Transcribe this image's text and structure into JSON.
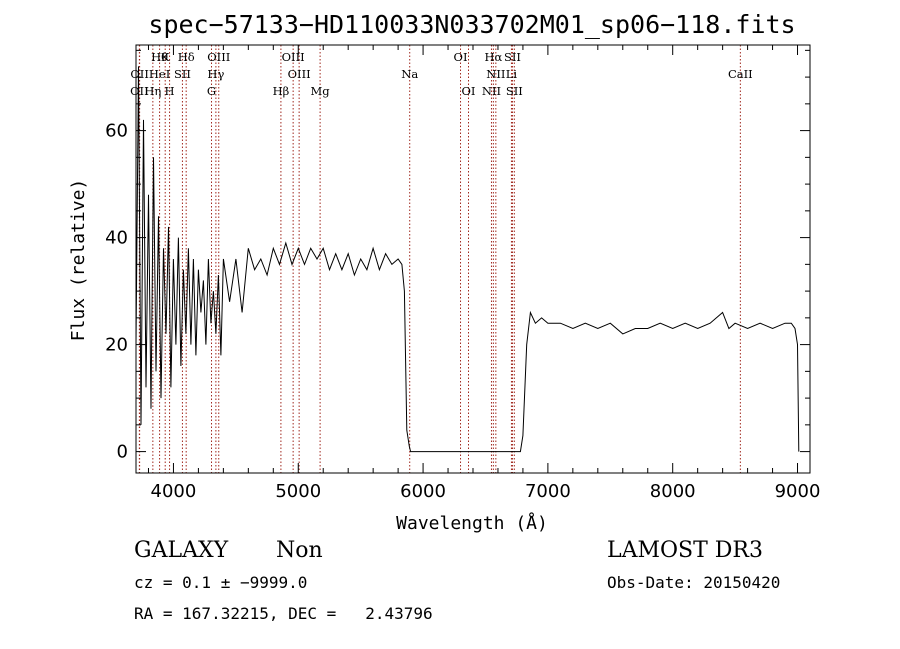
{
  "chart_data": {
    "type": "line",
    "title": "spec−57133−HD110033N033702M01_sp06−118.fits",
    "xlabel": "Wavelength (Å)",
    "ylabel": "Flux (relative)",
    "xlim": [
      3700,
      9100
    ],
    "ylim": [
      -4,
      76
    ],
    "x_ticks": [
      4000,
      5000,
      6000,
      7000,
      8000,
      9000
    ],
    "y_ticks": [
      0,
      20,
      40,
      60
    ],
    "grid": false,
    "line_color": "#000000",
    "marker_color": "#a0281e",
    "spectral_lines": [
      {
        "label": "OII",
        "wavelength": 3727,
        "row": 2
      },
      {
        "label": "OII",
        "wavelength": 3729,
        "row": 1
      },
      {
        "label": "Hη",
        "wavelength": 3835,
        "row": 2
      },
      {
        "label": "Hθ",
        "wavelength": 3889,
        "row": 0
      },
      {
        "label": "HeI",
        "wavelength": 3889,
        "row": 1
      },
      {
        "label": "K",
        "wavelength": 3934,
        "row": 0
      },
      {
        "label": "H",
        "wavelength": 3969,
        "row": 2
      },
      {
        "label": "Hδ",
        "wavelength": 4102,
        "row": 0
      },
      {
        "label": "SII",
        "wavelength": 4072,
        "row": 1
      },
      {
        "label": "OIII",
        "wavelength": 4363,
        "row": 0
      },
      {
        "label": "Hγ",
        "wavelength": 4340,
        "row": 1
      },
      {
        "label": "G",
        "wavelength": 4305,
        "row": 2
      },
      {
        "label": "OIII",
        "wavelength": 4959,
        "row": 0
      },
      {
        "label": "OIII",
        "wavelength": 5007,
        "row": 1
      },
      {
        "label": "Hβ",
        "wavelength": 4861,
        "row": 2
      },
      {
        "label": "Mg",
        "wavelength": 5175,
        "row": 2
      },
      {
        "label": "Na",
        "wavelength": 5893,
        "row": 1
      },
      {
        "label": "OI",
        "wavelength": 6300,
        "row": 0
      },
      {
        "label": "OI",
        "wavelength": 6364,
        "row": 2
      },
      {
        "label": "Hα",
        "wavelength": 6563,
        "row": 0
      },
      {
        "label": "SII",
        "wavelength": 6716,
        "row": 0
      },
      {
        "label": "NII",
        "wavelength": 6583,
        "row": 1
      },
      {
        "label": "Li",
        "wavelength": 6708,
        "row": 1
      },
      {
        "label": "NII",
        "wavelength": 6548,
        "row": 2
      },
      {
        "label": "SII",
        "wavelength": 6731,
        "row": 2
      },
      {
        "label": "CaII",
        "wavelength": 8542,
        "row": 1
      }
    ],
    "series": [
      {
        "x": [
          3700,
          3720,
          3740,
          3760,
          3780,
          3800,
          3820,
          3840,
          3860,
          3880,
          3900,
          3920,
          3940,
          3960,
          3980,
          4000,
          4020,
          4040,
          4060,
          4080,
          4100,
          4120,
          4140,
          4160,
          4180,
          4200,
          4220,
          4240,
          4260,
          4280,
          4300,
          4320,
          4340,
          4360,
          4380,
          4400,
          4450,
          4500,
          4550,
          4600,
          4650,
          4700,
          4750,
          4800,
          4850,
          4900,
          4950,
          5000,
          5050,
          5100,
          5150,
          5200,
          5250,
          5300,
          5350,
          5400,
          5450,
          5500,
          5550,
          5600,
          5650,
          5700,
          5750,
          5800,
          5830,
          5850,
          5870,
          5890,
          5900,
          5920,
          5950,
          6000,
          6100,
          6200,
          6300,
          6400,
          6500,
          6600,
          6700,
          6750,
          6780,
          6800,
          6830,
          6860,
          6900,
          6950,
          7000,
          7100,
          7200,
          7300,
          7400,
          7500,
          7600,
          7700,
          7800,
          7900,
          8000,
          8100,
          8200,
          8300,
          8400,
          8450,
          8500,
          8600,
          8700,
          8800,
          8900,
          8950,
          8980,
          9000,
          9010
        ],
        "values": [
          20,
          72,
          5,
          62,
          12,
          48,
          8,
          55,
          15,
          44,
          10,
          38,
          22,
          42,
          12,
          36,
          20,
          40,
          16,
          34,
          22,
          38,
          20,
          36,
          18,
          34,
          26,
          32,
          20,
          36,
          24,
          30,
          22,
          33,
          18,
          36,
          28,
          36,
          26,
          38,
          34,
          36,
          33,
          38,
          35,
          39,
          35,
          38,
          35,
          38,
          36,
          38,
          34,
          37,
          34,
          37,
          33,
          36,
          34,
          38,
          34,
          37,
          35,
          36,
          35,
          30,
          4,
          1,
          0,
          0,
          0,
          0,
          0,
          0,
          0,
          0,
          0,
          0,
          0,
          0,
          0,
          3,
          20,
          26,
          24,
          25,
          24,
          24,
          23,
          24,
          23,
          24,
          22,
          23,
          23,
          24,
          23,
          24,
          23,
          24,
          26,
          23,
          24,
          23,
          24,
          23,
          24,
          24,
          23,
          20,
          0
        ]
      }
    ]
  },
  "info": {
    "galaxy": "GALAXY",
    "non": "Non",
    "cz": "cz = 0.1 ± −9999.0",
    "radec": "RA = 167.32215, DEC =   2.43796",
    "survey": "LAMOST DR3",
    "obsdate": "Obs-Date: 20150420"
  }
}
